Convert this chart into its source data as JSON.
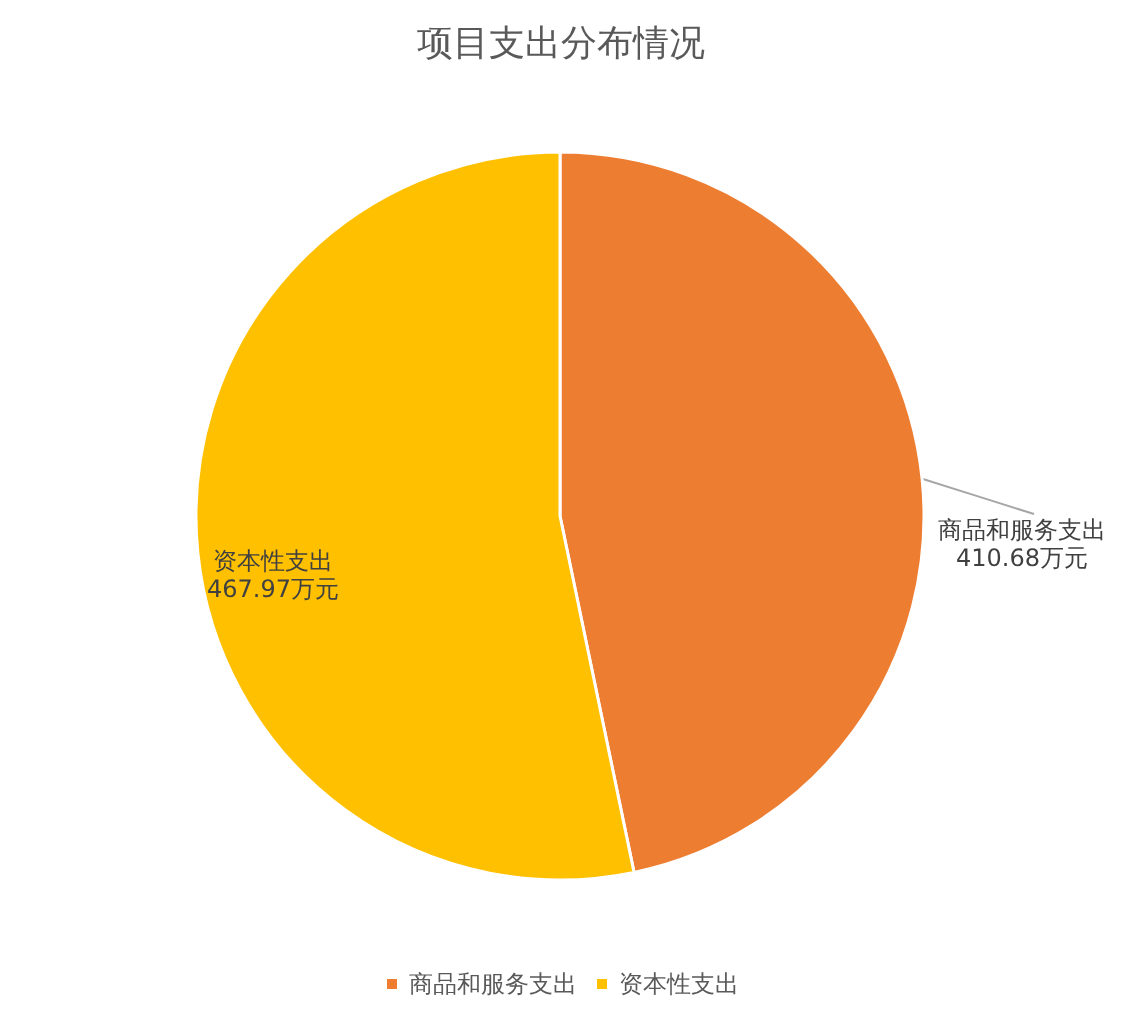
{
  "chart_data": {
    "type": "pie",
    "title": "项目支出分布情况",
    "categories": [
      "商品和服务支出",
      "资本性支出"
    ],
    "values": [
      410.68,
      467.97
    ],
    "colors": [
      "#ed7d31",
      "#ffc000"
    ],
    "value_labels": [
      "410.68万元",
      "467.97万元"
    ],
    "legend": "bottom"
  }
}
